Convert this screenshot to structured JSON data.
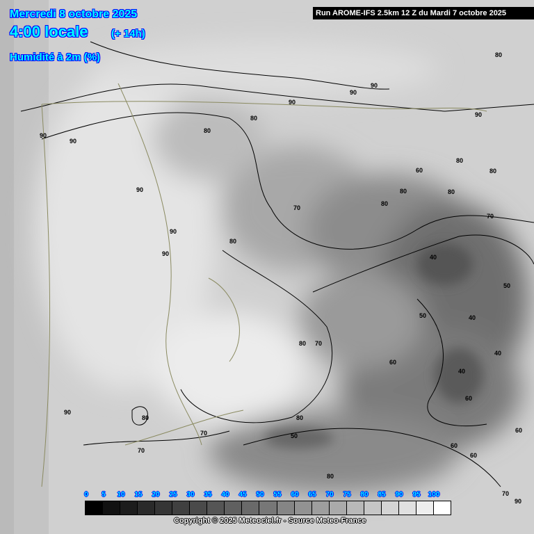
{
  "header": {
    "date": "Mercredi 8 octobre 2025",
    "time": "4:00 locale",
    "lead": "(+ 14h)",
    "parameter": "Humidité à 2m (%)",
    "run": "Run AROME-IFS 2.5km 12 Z du Mardi 7 octobre 2025"
  },
  "legend": {
    "labels": [
      "0",
      "5",
      "10",
      "15",
      "20",
      "25",
      "30",
      "35",
      "40",
      "45",
      "50",
      "55",
      "60",
      "65",
      "70",
      "75",
      "80",
      "85",
      "90",
      "95",
      "100"
    ],
    "colors": [
      "#000000",
      "#111111",
      "#1c1c1c",
      "#2a2a2a",
      "#353535",
      "#404040",
      "#4a4a4a",
      "#555555",
      "#606060",
      "#6a6a6a",
      "#777777",
      "#858585",
      "#929292",
      "#9e9e9e",
      "#aaaaaa",
      "#b8b8b8",
      "#c6c6c6",
      "#d4d4d4",
      "#e0e0e0",
      "#eeeeee",
      "#ffffff"
    ]
  },
  "contour_labels": [
    "80",
    "90",
    "90",
    "90",
    "80",
    "80",
    "90",
    "90",
    "90",
    "90",
    "90",
    "80",
    "80",
    "80",
    "70",
    "80",
    "70",
    "80",
    "80",
    "40",
    "50",
    "50",
    "40",
    "40",
    "40",
    "60",
    "60",
    "60",
    "70",
    "80",
    "80",
    "60",
    "60",
    "60",
    "70",
    "70",
    "80",
    "50",
    "70",
    "90",
    "90",
    "80",
    "90"
  ],
  "copyright": "Copyright © 2025 Meteociel.fr - Source Meteo-France"
}
